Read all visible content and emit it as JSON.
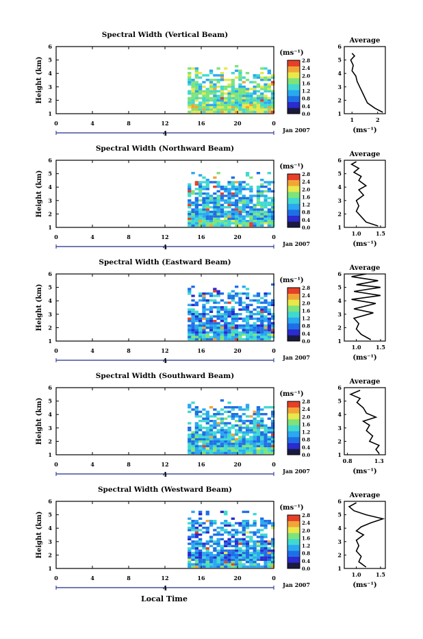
{
  "chart_data": [
    {
      "type": "heatmap",
      "title": "Spectral Width (Vertical Beam)",
      "ylabel": "Height (km)",
      "unit_label": "(ms⁻¹)",
      "date_label": "Jan 2007",
      "day_label": "4",
      "x_ticks": [
        "0",
        "4",
        "8",
        "12",
        "16",
        "20",
        "0"
      ],
      "y_ticks": [
        "1",
        "2",
        "3",
        "4",
        "5",
        "6"
      ],
      "colorbar_ticks": [
        "0.0",
        "0.4",
        "0.8",
        "1.2",
        "1.6",
        "2.0",
        "2.4",
        "2.8"
      ],
      "xlim": [
        0,
        24
      ],
      "ylim": [
        1,
        6
      ],
      "data_start_hour": 14.5,
      "data_top_km": 4.0,
      "width_level": 0.55,
      "average": {
        "title": "Average",
        "xlabel": "(ms⁻¹)",
        "x_ticks": [
          "1",
          "2"
        ],
        "y_ticks": [
          "1",
          "2",
          "3",
          "4",
          "5",
          "6"
        ],
        "xlim": [
          0.7,
          2.3
        ],
        "profile": [
          [
            2.2,
            1.1
          ],
          [
            1.9,
            1.4
          ],
          [
            1.6,
            1.8
          ],
          [
            1.5,
            2.2
          ],
          [
            1.4,
            2.6
          ],
          [
            1.3,
            3.0
          ],
          [
            1.2,
            3.4
          ],
          [
            1.15,
            3.8
          ],
          [
            1.0,
            4.2
          ],
          [
            1.05,
            4.6
          ],
          [
            0.95,
            5.0
          ],
          [
            1.1,
            5.3
          ],
          [
            1.0,
            5.5
          ]
        ]
      }
    },
    {
      "type": "heatmap",
      "title": "Spectral Width (Northward Beam)",
      "ylabel": "Height (km)",
      "unit_label": "(ms⁻¹)",
      "date_label": "Jan 2007",
      "day_label": "4",
      "x_ticks": [
        "0",
        "4",
        "8",
        "12",
        "16",
        "20",
        "0"
      ],
      "y_ticks": [
        "1",
        "2",
        "3",
        "4",
        "5",
        "6"
      ],
      "colorbar_ticks": [
        "0.0",
        "0.4",
        "0.8",
        "1.2",
        "1.6",
        "2.0",
        "2.4",
        "2.8"
      ],
      "xlim": [
        0,
        24
      ],
      "ylim": [
        1,
        6
      ],
      "data_start_hour": 14.5,
      "data_top_km": 4.4,
      "width_level": 0.4,
      "average": {
        "title": "Average",
        "xlabel": "(ms⁻¹)",
        "x_ticks": [
          "1.0",
          "1.5"
        ],
        "y_ticks": [
          "1",
          "2",
          "3",
          "4",
          "5",
          "6"
        ],
        "xlim": [
          0.75,
          1.6
        ],
        "profile": [
          [
            1.45,
            1.1
          ],
          [
            1.2,
            1.4
          ],
          [
            1.1,
            1.8
          ],
          [
            1.0,
            2.2
          ],
          [
            1.05,
            2.6
          ],
          [
            1.0,
            3.0
          ],
          [
            1.15,
            3.4
          ],
          [
            1.05,
            3.8
          ],
          [
            1.2,
            4.1
          ],
          [
            1.05,
            4.5
          ],
          [
            1.1,
            4.8
          ],
          [
            0.95,
            5.1
          ],
          [
            1.05,
            5.4
          ],
          [
            0.9,
            5.7
          ],
          [
            1.0,
            5.9
          ]
        ]
      }
    },
    {
      "type": "heatmap",
      "title": "Spectral Width (Eastward Beam)",
      "ylabel": "Height (km)",
      "unit_label": "(ms⁻¹)",
      "date_label": "Jan 2007",
      "day_label": "4",
      "x_ticks": [
        "0",
        "4",
        "8",
        "12",
        "16",
        "20",
        "0"
      ],
      "y_ticks": [
        "1",
        "2",
        "3",
        "4",
        "5",
        "6"
      ],
      "colorbar_ticks": [
        "0.0",
        "0.4",
        "0.8",
        "1.2",
        "1.6",
        "2.0",
        "2.4",
        "2.8"
      ],
      "xlim": [
        0,
        24
      ],
      "ylim": [
        1,
        6
      ],
      "data_start_hour": 14.5,
      "data_top_km": 4.6,
      "width_level": 0.35,
      "average": {
        "title": "Average",
        "xlabel": "(ms⁻¹)",
        "x_ticks": [
          "1.0",
          "1.5"
        ],
        "y_ticks": [
          "1",
          "2",
          "3",
          "4",
          "5",
          "6"
        ],
        "xlim": [
          0.75,
          1.6
        ],
        "profile": [
          [
            1.3,
            1.1
          ],
          [
            1.1,
            1.5
          ],
          [
            1.0,
            1.9
          ],
          [
            1.05,
            2.3
          ],
          [
            0.95,
            2.7
          ],
          [
            1.35,
            3.1
          ],
          [
            0.95,
            3.4
          ],
          [
            1.4,
            3.8
          ],
          [
            0.9,
            4.1
          ],
          [
            1.5,
            4.4
          ],
          [
            0.95,
            4.7
          ],
          [
            1.5,
            5.0
          ],
          [
            1.0,
            5.2
          ],
          [
            1.45,
            5.5
          ],
          [
            0.9,
            5.8
          ],
          [
            1.2,
            6.0
          ]
        ]
      }
    },
    {
      "type": "heatmap",
      "title": "Spectral Width (Southward Beam)",
      "ylabel": "Height (km)",
      "unit_label": "(ms⁻¹)",
      "date_label": "Jan 2007",
      "day_label": "4",
      "x_ticks": [
        "0",
        "4",
        "8",
        "12",
        "16",
        "20",
        "0"
      ],
      "y_ticks": [
        "1",
        "2",
        "3",
        "4",
        "5",
        "6"
      ],
      "colorbar_ticks": [
        "0.0",
        "0.4",
        "0.8",
        "1.2",
        "1.6",
        "2.0",
        "2.4",
        "2.8"
      ],
      "xlim": [
        0,
        24
      ],
      "ylim": [
        1,
        6
      ],
      "data_start_hour": 14.5,
      "data_top_km": 4.5,
      "width_level": 0.4,
      "average": {
        "title": "Average",
        "xlabel": "(ms⁻¹)",
        "x_ticks": [
          "0.8",
          "1.3"
        ],
        "y_ticks": [
          "1",
          "2",
          "3",
          "4",
          "5",
          "6"
        ],
        "xlim": [
          0.75,
          1.4
        ],
        "profile": [
          [
            1.3,
            1.1
          ],
          [
            1.25,
            1.4
          ],
          [
            1.3,
            1.7
          ],
          [
            1.15,
            2.0
          ],
          [
            1.2,
            2.4
          ],
          [
            1.1,
            2.8
          ],
          [
            1.15,
            3.2
          ],
          [
            1.05,
            3.5
          ],
          [
            1.25,
            3.8
          ],
          [
            1.1,
            4.1
          ],
          [
            1.05,
            4.5
          ],
          [
            0.95,
            4.9
          ],
          [
            1.0,
            5.2
          ],
          [
            0.85,
            5.5
          ],
          [
            1.0,
            5.8
          ]
        ]
      }
    },
    {
      "type": "heatmap",
      "title": "Spectral Width (Westward Beam)",
      "ylabel": "Height (km)",
      "unit_label": "(ms⁻¹)",
      "date_label": "Jan 2007",
      "day_label": "4",
      "x_ticks": [
        "0",
        "4",
        "8",
        "12",
        "16",
        "20",
        "0"
      ],
      "y_ticks": [
        "1",
        "2",
        "3",
        "4",
        "5",
        "6"
      ],
      "colorbar_ticks": [
        "0.0",
        "0.4",
        "0.8",
        "1.2",
        "1.6",
        "2.0",
        "2.4",
        "2.8"
      ],
      "xlim": [
        0,
        24
      ],
      "ylim": [
        1,
        6
      ],
      "data_start_hour": 14.5,
      "data_top_km": 4.6,
      "width_level": 0.35,
      "average": {
        "title": "Average",
        "xlabel": "(ms⁻¹)",
        "x_ticks": [
          "1.0",
          "1.5"
        ],
        "y_ticks": [
          "1",
          "2",
          "3",
          "4",
          "5",
          "6"
        ],
        "xlim": [
          0.75,
          1.6
        ],
        "profile": [
          [
            1.2,
            1.1
          ],
          [
            1.05,
            1.5
          ],
          [
            1.1,
            1.9
          ],
          [
            1.0,
            2.3
          ],
          [
            1.05,
            2.7
          ],
          [
            1.0,
            3.1
          ],
          [
            1.15,
            3.5
          ],
          [
            1.0,
            3.8
          ],
          [
            1.1,
            4.1
          ],
          [
            1.3,
            4.4
          ],
          [
            1.55,
            4.7
          ],
          [
            1.2,
            5.0
          ],
          [
            0.95,
            5.3
          ],
          [
            0.85,
            5.6
          ],
          [
            1.0,
            5.9
          ]
        ]
      }
    }
  ],
  "footer": {
    "xlabel": "Local Time"
  },
  "colors": {
    "colormap": [
      "#1a1a40",
      "#2b2bd0",
      "#1e6fe6",
      "#2aa8f0",
      "#40d9d0",
      "#7ee37a",
      "#e8e84a",
      "#f2a536",
      "#e64028"
    ],
    "axis": "#000000",
    "line": "#000000"
  }
}
